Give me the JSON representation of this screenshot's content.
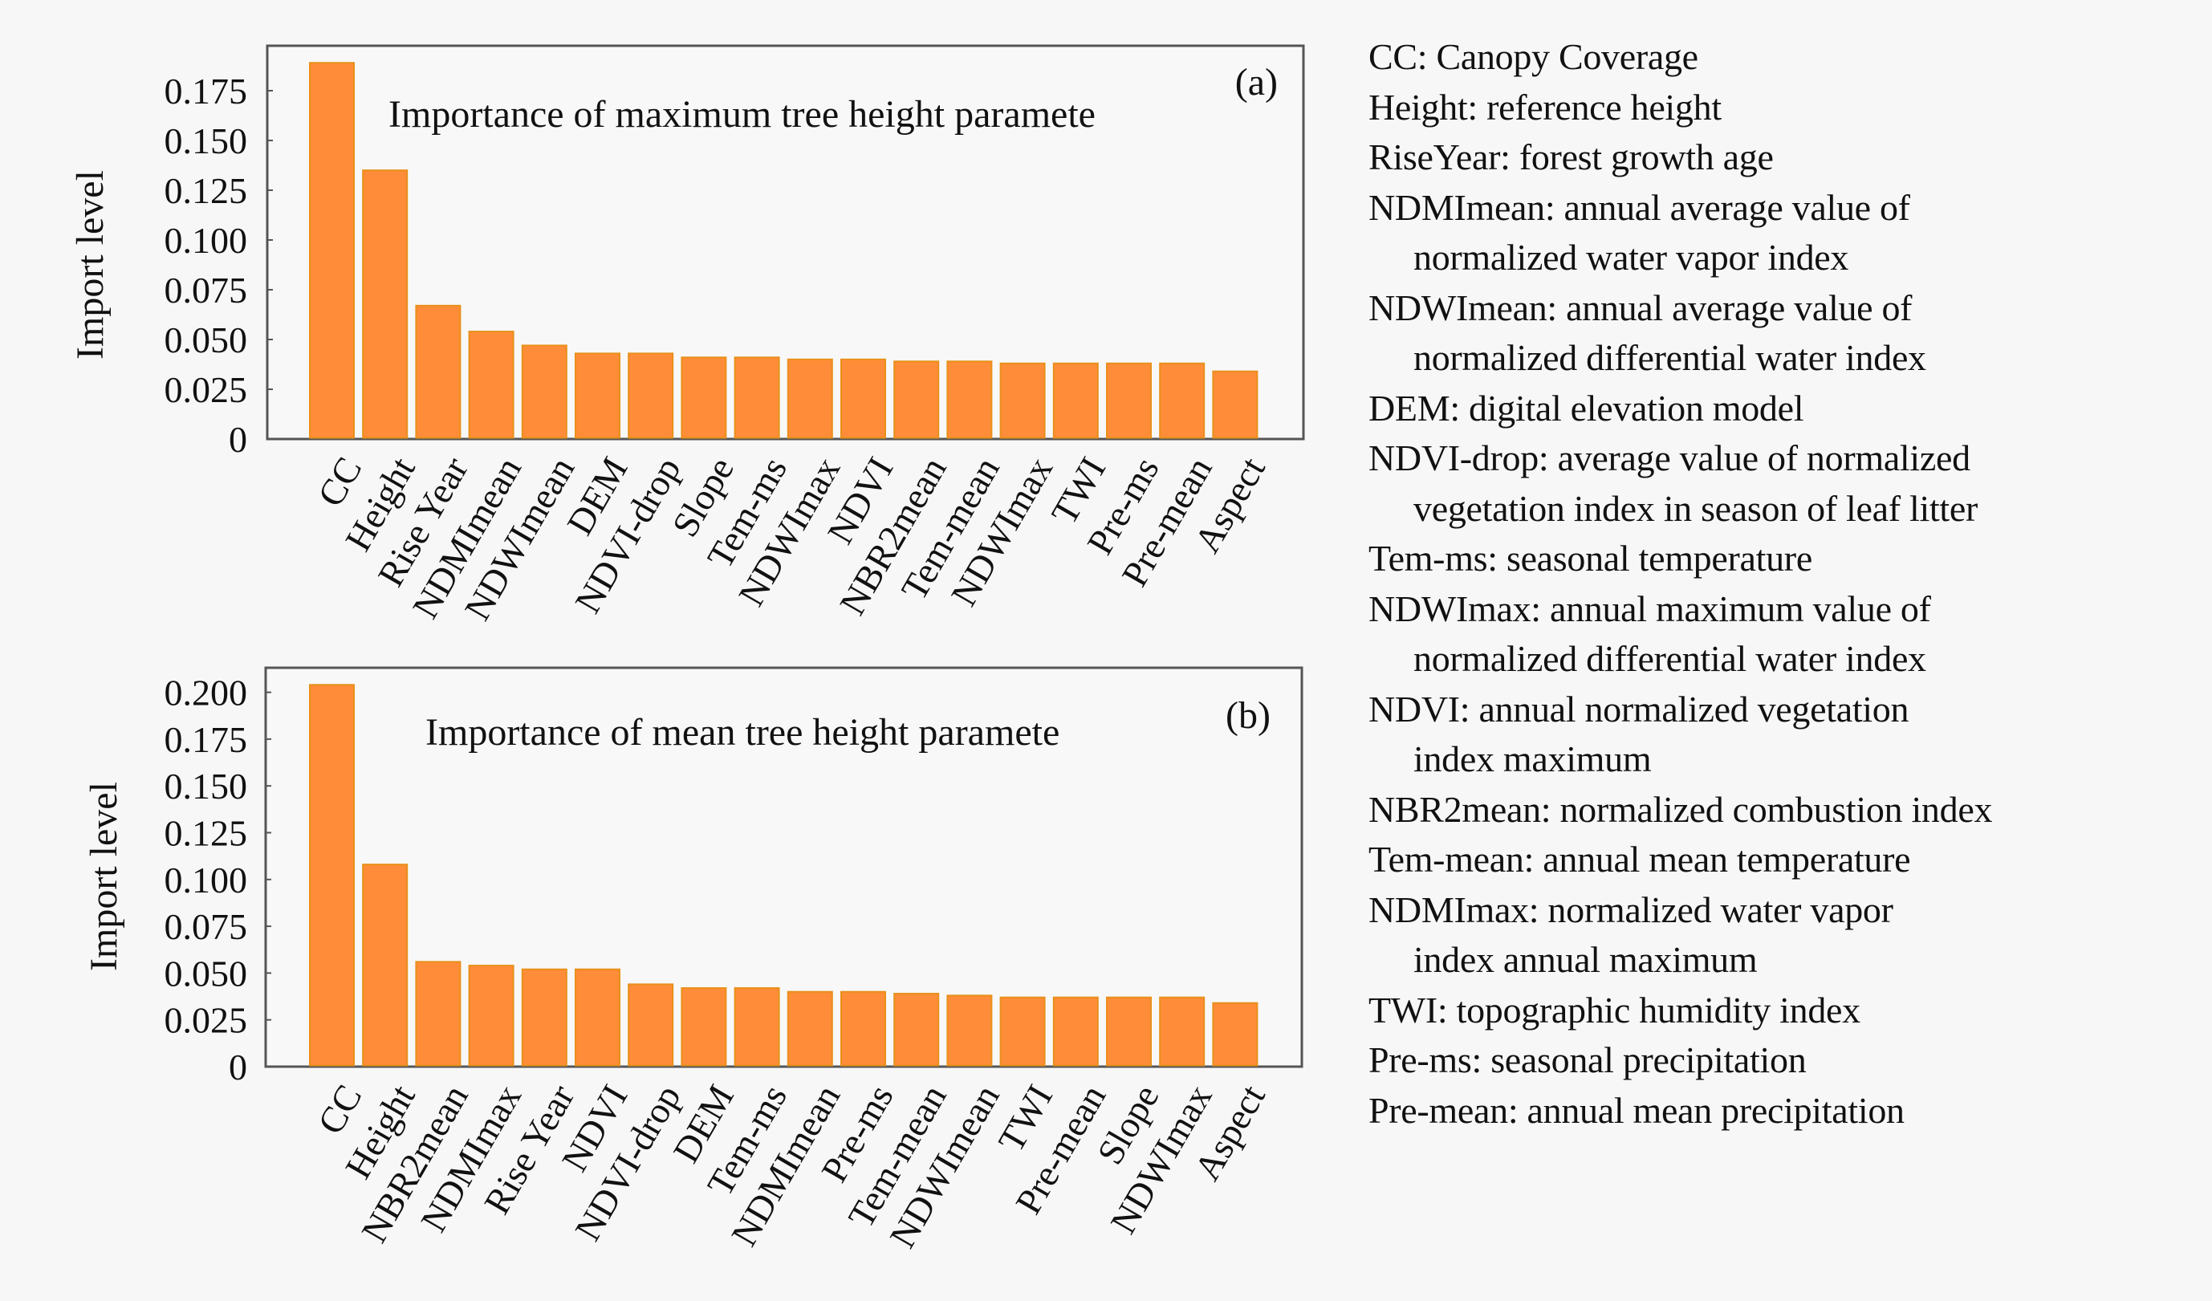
{
  "chart_data": [
    {
      "id": "a",
      "type": "bar",
      "title": "Importance of maximum tree height paramete",
      "panel_label": "(a)",
      "xlabel": "",
      "ylabel": "Import level",
      "ylim": [
        0,
        0.19
      ],
      "yticks": [
        0,
        0.025,
        0.05,
        0.075,
        0.1,
        0.125,
        0.15,
        0.175
      ],
      "ytick_labels": [
        "0",
        "0.025",
        "0.050",
        "0.075",
        "0.100",
        "0.125",
        "0.150",
        "0.175"
      ],
      "categories": [
        "CC",
        "Height",
        "Rise Year",
        "NDMImean",
        "NDWImean",
        "DEM",
        "NDVI-drop",
        "Slope",
        "Tem-ms",
        "NDWImax",
        "NDVI",
        "NBR2mean",
        "Tem-mean",
        "NDWImax",
        "TWI",
        "Pre-ms",
        "Pre-mean",
        "Aspect"
      ],
      "values": [
        0.189,
        0.135,
        0.067,
        0.054,
        0.047,
        0.043,
        0.043,
        0.041,
        0.041,
        0.04,
        0.04,
        0.039,
        0.039,
        0.038,
        0.038,
        0.038,
        0.038,
        0.034
      ],
      "color": "#ff8c38",
      "grid": false,
      "legend": "none"
    },
    {
      "id": "b",
      "type": "bar",
      "title": "Importance of mean tree height paramete",
      "panel_label": "(b)",
      "xlabel": "",
      "ylabel": "Import level",
      "ylim": [
        0,
        0.213
      ],
      "yticks": [
        0,
        0.025,
        0.05,
        0.075,
        0.1,
        0.125,
        0.15,
        0.175,
        0.2
      ],
      "ytick_labels": [
        "0",
        "0.025",
        "0.050",
        "0.075",
        "0.100",
        "0.125",
        "0.150",
        "0.175",
        "0.200"
      ],
      "categories": [
        "CC",
        "Height",
        "NBR2mean",
        "NDMImax",
        "Rise Year",
        "NDVI",
        "NDVI-drop",
        "DEM",
        "Tem-ms",
        "NDMImean",
        "Pre-ms",
        "Tem-mean",
        "NDWImean",
        "TWI",
        "Pre-mean",
        "Slope",
        "NDWImax",
        "Aspect"
      ],
      "values": [
        0.204,
        0.108,
        0.056,
        0.054,
        0.052,
        0.052,
        0.044,
        0.042,
        0.042,
        0.04,
        0.04,
        0.039,
        0.038,
        0.037,
        0.037,
        0.037,
        0.037,
        0.034
      ],
      "color": "#ff8c38",
      "grid": false,
      "legend": "none"
    }
  ],
  "glossary": [
    {
      "text": "CC: Canopy Coverage",
      "cont": false
    },
    {
      "text": "Height: reference height",
      "cont": false
    },
    {
      "text": "RiseYear: forest growth age",
      "cont": false
    },
    {
      "text": "NDMImean: annual average value of",
      "cont": false
    },
    {
      "text": "normalized water vapor index",
      "cont": true
    },
    {
      "text": "NDWImean: annual average value of",
      "cont": false
    },
    {
      "text": "normalized differential water index",
      "cont": true
    },
    {
      "text": "DEM: digital elevation model",
      "cont": false
    },
    {
      "text": "NDVI-drop: average value of normalized",
      "cont": false
    },
    {
      "text": "vegetation index in season of leaf litter",
      "cont": true
    },
    {
      "text": "Tem-ms: seasonal temperature",
      "cont": false
    },
    {
      "text": "NDWImax: annual maximum value of",
      "cont": false
    },
    {
      "text": "normalized differential water index",
      "cont": true
    },
    {
      "text": "NDVI: annual normalized vegetation",
      "cont": false
    },
    {
      "text": "index maximum",
      "cont": true
    },
    {
      "text": "NBR2mean: normalized combustion index",
      "cont": false
    },
    {
      "text": "Tem-mean: annual mean temperature",
      "cont": false
    },
    {
      "text": "NDMImax: normalized water vapor",
      "cont": false
    },
    {
      "text": "index annual maximum",
      "cont": true
    },
    {
      "text": "TWI: topographic humidity index",
      "cont": false
    },
    {
      "text": "Pre-ms: seasonal precipitation",
      "cont": false
    },
    {
      "text": "Pre-mean: annual mean precipitation",
      "cont": false
    }
  ]
}
